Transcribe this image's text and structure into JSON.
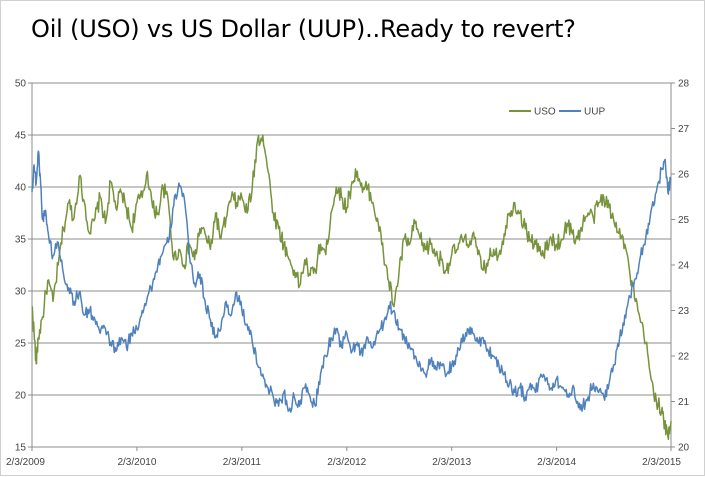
{
  "chart_data": {
    "type": "line",
    "title": "Oil (USO) vs US Dollar (UUP)..Ready to revert?",
    "xlabel": "",
    "ylabel_left": "",
    "ylabel_right": "",
    "x_ticks": [
      "2/3/2009",
      "2/3/2010",
      "2/3/2011",
      "2/3/2012",
      "2/3/2013",
      "2/3/2014",
      "2/3/2015"
    ],
    "x_range": [
      2009.0,
      2015.09
    ],
    "y_left": {
      "range": [
        15,
        50
      ],
      "ticks": [
        15,
        20,
        25,
        30,
        35,
        40,
        45,
        50
      ]
    },
    "y_right": {
      "range": [
        20,
        28
      ],
      "ticks": [
        20,
        21,
        22,
        23,
        24,
        25,
        26,
        27,
        28
      ]
    },
    "grid": true,
    "legend_position": "top-right",
    "colors": {
      "USO": "#77933c",
      "UUP": "#4f81bd",
      "grid": "#8c8c8c",
      "axis": "#8c8c8c"
    },
    "series": [
      {
        "name": "USO",
        "axis": "left",
        "x": [
          2009.0,
          2009.02,
          2009.04,
          2009.06,
          2009.1,
          2009.15,
          2009.2,
          2009.25,
          2009.3,
          2009.35,
          2009.4,
          2009.45,
          2009.5,
          2009.55,
          2009.6,
          2009.65,
          2009.7,
          2009.75,
          2009.8,
          2009.85,
          2009.9,
          2009.95,
          2010.0,
          2010.05,
          2010.1,
          2010.15,
          2010.2,
          2010.25,
          2010.3,
          2010.35,
          2010.4,
          2010.45,
          2010.5,
          2010.55,
          2010.6,
          2010.65,
          2010.7,
          2010.75,
          2010.8,
          2010.85,
          2010.9,
          2010.95,
          2011.0,
          2011.05,
          2011.1,
          2011.15,
          2011.2,
          2011.25,
          2011.3,
          2011.35,
          2011.4,
          2011.45,
          2011.5,
          2011.55,
          2011.6,
          2011.65,
          2011.7,
          2011.75,
          2011.8,
          2011.85,
          2011.9,
          2011.95,
          2012.0,
          2012.05,
          2012.1,
          2012.15,
          2012.2,
          2012.25,
          2012.3,
          2012.35,
          2012.4,
          2012.45,
          2012.5,
          2012.55,
          2012.6,
          2012.65,
          2012.7,
          2012.75,
          2012.8,
          2012.85,
          2012.9,
          2012.95,
          2013.0,
          2013.05,
          2013.1,
          2013.15,
          2013.2,
          2013.25,
          2013.3,
          2013.35,
          2013.4,
          2013.45,
          2013.5,
          2013.55,
          2013.6,
          2013.65,
          2013.7,
          2013.75,
          2013.8,
          2013.85,
          2013.9,
          2013.95,
          2014.0,
          2014.05,
          2014.1,
          2014.15,
          2014.2,
          2014.25,
          2014.3,
          2014.35,
          2014.4,
          2014.45,
          2014.5,
          2014.55,
          2014.6,
          2014.65,
          2014.7,
          2014.75,
          2014.8,
          2014.85,
          2014.9,
          2014.95,
          2015.0,
          2015.03,
          2015.06,
          2015.09
        ],
        "values": [
          28.5,
          26.0,
          23.0,
          25.5,
          27.5,
          31.0,
          29.0,
          32.5,
          36.0,
          38.5,
          37.0,
          41.0,
          38.5,
          35.5,
          37.0,
          39.0,
          36.5,
          40.5,
          38.0,
          39.5,
          38.0,
          36.0,
          38.5,
          39.0,
          41.5,
          38.0,
          37.5,
          40.0,
          38.5,
          33.0,
          34.0,
          32.5,
          34.5,
          33.0,
          36.0,
          35.5,
          34.0,
          37.5,
          35.0,
          37.0,
          39.0,
          38.5,
          39.0,
          37.5,
          40.0,
          44.5,
          45.0,
          41.5,
          37.5,
          36.0,
          34.5,
          33.0,
          32.0,
          30.5,
          33.0,
          31.5,
          32.0,
          34.5,
          33.5,
          37.5,
          40.0,
          39.0,
          38.0,
          40.5,
          41.5,
          39.5,
          40.0,
          38.5,
          36.5,
          33.5,
          31.0,
          28.5,
          32.0,
          35.0,
          34.5,
          36.5,
          35.0,
          34.0,
          34.5,
          33.5,
          33.0,
          32.0,
          33.5,
          34.0,
          35.0,
          34.5,
          35.5,
          33.5,
          32.0,
          33.0,
          34.0,
          33.5,
          35.5,
          37.5,
          38.5,
          37.5,
          36.0,
          35.0,
          34.5,
          33.5,
          34.0,
          35.0,
          34.5,
          35.0,
          36.5,
          35.5,
          35.0,
          36.5,
          37.5,
          37.0,
          38.5,
          39.0,
          38.0,
          36.5,
          36.0,
          34.5,
          31.5,
          29.0,
          27.0,
          25.0,
          21.5,
          19.5,
          18.5,
          17.0,
          16.0,
          17.5
        ]
      },
      {
        "name": "UUP",
        "axis": "right",
        "x": [
          2009.0,
          2009.02,
          2009.04,
          2009.06,
          2009.08,
          2009.1,
          2009.13,
          2009.16,
          2009.2,
          2009.25,
          2009.3,
          2009.35,
          2009.4,
          2009.45,
          2009.5,
          2009.55,
          2009.6,
          2009.65,
          2009.7,
          2009.75,
          2009.8,
          2009.85,
          2009.9,
          2009.95,
          2010.0,
          2010.05,
          2010.1,
          2010.15,
          2010.2,
          2010.25,
          2010.3,
          2010.35,
          2010.4,
          2010.45,
          2010.5,
          2010.55,
          2010.6,
          2010.65,
          2010.7,
          2010.75,
          2010.8,
          2010.85,
          2010.9,
          2010.95,
          2011.0,
          2011.05,
          2011.1,
          2011.15,
          2011.2,
          2011.25,
          2011.3,
          2011.35,
          2011.4,
          2011.45,
          2011.5,
          2011.55,
          2011.6,
          2011.65,
          2011.7,
          2011.75,
          2011.8,
          2011.85,
          2011.9,
          2011.95,
          2012.0,
          2012.05,
          2012.1,
          2012.15,
          2012.2,
          2012.25,
          2012.3,
          2012.35,
          2012.4,
          2012.45,
          2012.5,
          2012.55,
          2012.6,
          2012.65,
          2012.7,
          2012.75,
          2012.8,
          2012.85,
          2012.9,
          2012.95,
          2013.0,
          2013.05,
          2013.1,
          2013.15,
          2013.2,
          2013.25,
          2013.3,
          2013.35,
          2013.4,
          2013.45,
          2013.5,
          2013.55,
          2013.6,
          2013.65,
          2013.7,
          2013.75,
          2013.8,
          2013.85,
          2013.9,
          2013.95,
          2014.0,
          2014.05,
          2014.1,
          2014.15,
          2014.2,
          2014.25,
          2014.3,
          2014.35,
          2014.4,
          2014.45,
          2014.5,
          2014.55,
          2014.6,
          2014.65,
          2014.7,
          2014.75,
          2014.8,
          2014.85,
          2014.9,
          2014.95,
          2015.0,
          2015.03,
          2015.06,
          2015.09
        ],
        "values": [
          25.6,
          26.2,
          25.8,
          26.5,
          25.9,
          25.0,
          25.2,
          24.6,
          24.2,
          24.5,
          23.8,
          23.5,
          23.2,
          23.4,
          22.9,
          23.0,
          22.8,
          22.5,
          22.6,
          22.3,
          22.1,
          22.4,
          22.2,
          22.5,
          22.6,
          23.0,
          23.3,
          23.6,
          24.0,
          24.3,
          24.5,
          25.3,
          25.8,
          25.5,
          24.2,
          23.6,
          23.8,
          23.2,
          22.8,
          22.4,
          22.6,
          23.2,
          22.9,
          23.4,
          23.0,
          22.7,
          22.3,
          21.8,
          21.6,
          21.3,
          21.1,
          20.9,
          21.2,
          20.8,
          21.1,
          20.9,
          21.3,
          21.1,
          20.9,
          21.6,
          22.0,
          22.4,
          22.6,
          22.2,
          22.5,
          22.1,
          22.3,
          22.0,
          22.4,
          22.2,
          22.5,
          22.7,
          23.1,
          23.0,
          22.6,
          22.4,
          22.2,
          22.0,
          21.8,
          21.6,
          21.9,
          21.7,
          21.8,
          21.6,
          21.8,
          22.0,
          22.3,
          22.6,
          22.5,
          22.3,
          22.4,
          22.1,
          22.0,
          21.8,
          21.6,
          21.4,
          21.2,
          21.3,
          21.1,
          21.4,
          21.2,
          21.6,
          21.5,
          21.3,
          21.5,
          21.3,
          21.1,
          21.3,
          21.0,
          20.9,
          21.1,
          21.4,
          21.2,
          21.1,
          21.4,
          21.8,
          22.4,
          22.9,
          23.3,
          23.7,
          24.2,
          24.6,
          25.2,
          25.6,
          26.1,
          26.3,
          25.6,
          25.9
        ]
      }
    ]
  },
  "legend": {
    "uso_label": "USO",
    "uup_label": "UUP"
  }
}
